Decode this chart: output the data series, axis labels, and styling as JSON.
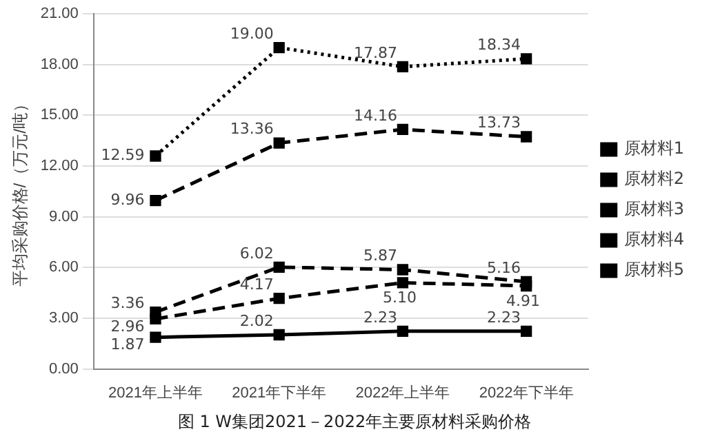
{
  "chart_data": {
    "type": "line",
    "title": "图 1 W集团2021－2022年主要原材料采购价格",
    "ylabel": "平均采购价格/（万元/吨）",
    "categories": [
      "2021年上半年",
      "2021年下半年",
      "2022年上半年",
      "2022年下半年"
    ],
    "series": [
      {
        "name": "原材料1",
        "color": "#000000",
        "line_style": "dashed",
        "values": [
          3.36,
          6.02,
          5.87,
          5.16
        ],
        "value_labels": [
          "3.36",
          "6.02",
          "5.87",
          "5.16"
        ]
      },
      {
        "name": "原材料2",
        "color": "#000000",
        "line_style": "dashed",
        "values": [
          9.96,
          13.36,
          14.16,
          13.73
        ],
        "value_labels": [
          "9.96",
          "13.36",
          "14.16",
          "13.73"
        ]
      },
      {
        "name": "原材料3",
        "color": "#000000",
        "line_style": "dotted",
        "values": [
          12.59,
          19.0,
          17.87,
          18.34
        ],
        "value_labels": [
          "12.59",
          "19.00",
          "17.87",
          "18.34"
        ]
      },
      {
        "name": "原材料4",
        "color": "#000000",
        "line_style": "dashed",
        "values": [
          2.96,
          4.17,
          5.1,
          4.91
        ],
        "value_labels": [
          "2.96",
          "4.17",
          "5.10",
          "4.91"
        ]
      },
      {
        "name": "原材料5",
        "color": "#000000",
        "line_style": "solid",
        "values": [
          1.87,
          2.02,
          2.23,
          2.23
        ],
        "value_labels": [
          "1.87",
          "2.02",
          "2.23",
          "2.23"
        ]
      }
    ],
    "ylim": [
      0,
      21
    ],
    "yticks": [
      {
        "value": 0,
        "label": "0.00"
      },
      {
        "value": 3,
        "label": "3.00"
      },
      {
        "value": 6,
        "label": "6.00"
      },
      {
        "value": 9,
        "label": "9.00"
      },
      {
        "value": 12,
        "label": "12.00"
      },
      {
        "value": 15,
        "label": "15.00"
      },
      {
        "value": 18,
        "label": "18.00"
      },
      {
        "value": 21,
        "label": "21.00"
      }
    ],
    "grid": "y",
    "legend": "right",
    "marker": "square"
  }
}
